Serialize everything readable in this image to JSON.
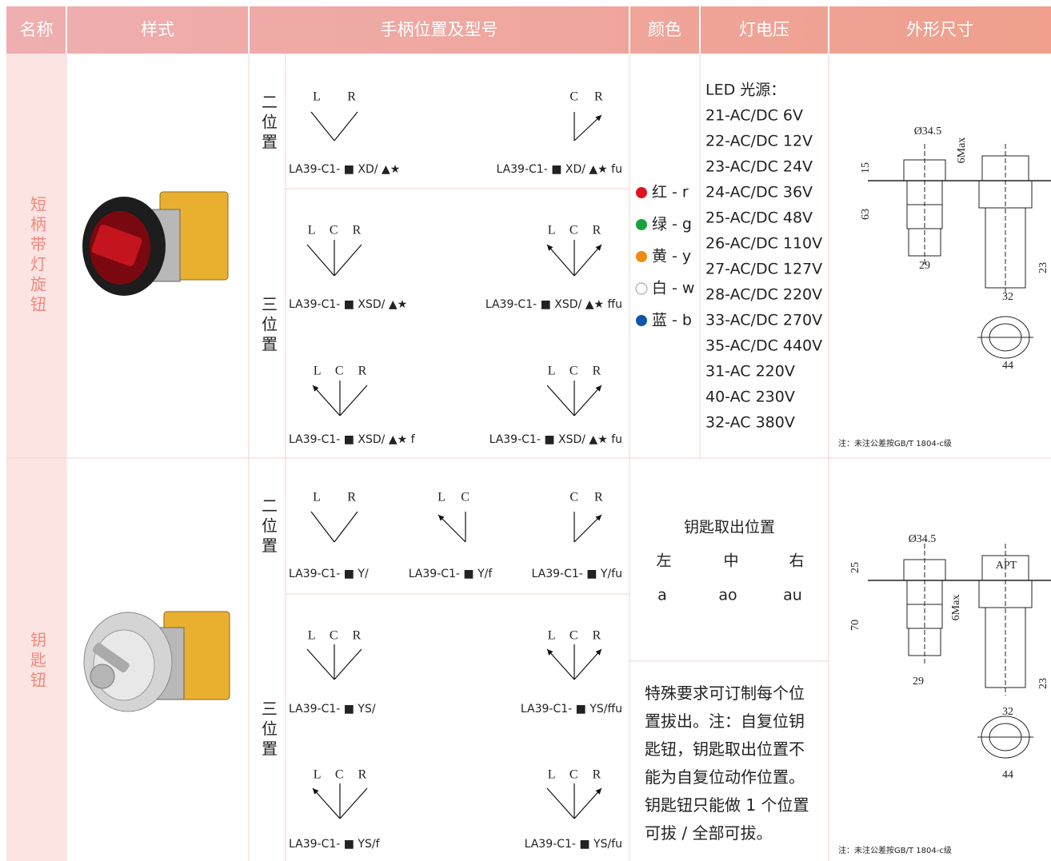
{
  "table": {
    "headers": [
      "名称",
      "样式",
      "手柄位置及型号",
      "颜色",
      "灯电压",
      "外形尺寸"
    ],
    "rows": [
      {
        "name": "短柄带灯旋钮",
        "positions": [
          {
            "label": "二位置",
            "diagrams": [
              {
                "letters": "L R",
                "model": "LA39-C1- ■ XD/ ▲★"
              },
              {
                "letters": "C R",
                "model": "LA39-C1- ■ XD/ ▲★ fu"
              }
            ]
          },
          {
            "label": "三位置",
            "diagrams": [
              {
                "letters": "L C R",
                "model": "LA39-C1- ■ XSD/ ▲★"
              },
              {
                "letters": "L C R",
                "model": "LA39-C1- ■ XSD/ ▲★ ffu"
              },
              {
                "letters": "L C R",
                "model": "LA39-C1- ■ XSD/ ▲★ f"
              },
              {
                "letters": "L C R",
                "model": "LA39-C1- ■ XSD/ ▲★ fu"
              }
            ]
          }
        ],
        "colors": [
          "红 - r",
          "绿 - g",
          "黄 - y",
          "白 - w",
          "蓝 - b"
        ],
        "voltage": {
          "title": "LED 光源：",
          "items": [
            "21-AC/DC 6V",
            "22-AC/DC 12V",
            "23-AC/DC 24V",
            "24-AC/DC 36V",
            "25-AC/DC 48V",
            "26-AC/DC 110V",
            "27-AC/DC 127V",
            "28-AC/DC 220V",
            "33-AC/DC 270V",
            "35-AC/DC 440V",
            "31-AC 220V",
            "40-AC 230V",
            "32-AC 380V"
          ]
        },
        "dimensions": {
          "labels": [
            "Ø34.5",
            "6Max",
            "15",
            "63",
            "29",
            "32",
            "23",
            "44"
          ],
          "note": "注：未注公差按GB/T 1804-c级"
        }
      },
      {
        "name": "钥匙钮",
        "positions": [
          {
            "label": "二位置",
            "diagrams": [
              {
                "letters": "L R",
                "model": "LA39-C1- ■ Y/"
              },
              {
                "letters": "L C",
                "model": "LA39-C1- ■ Y/f"
              },
              {
                "letters": "C R",
                "model": "LA39-C1- ■ Y/fu"
              }
            ]
          },
          {
            "label": "三位置",
            "diagrams": [
              {
                "letters": "L C R",
                "model": "LA39-C1- ■ YS/"
              },
              {
                "letters": "L C R",
                "model": "LA39-C1- ■ YS/ffu"
              },
              {
                "letters": "L C R",
                "model": "LA39-C1- ■ YS/f"
              },
              {
                "letters": "L C R",
                "model": "LA39-C1- ■ YS/fu"
              }
            ]
          }
        ],
        "key_positions": {
          "title": "钥匙取出位置",
          "columns": [
            "左",
            "中",
            "右"
          ],
          "codes": [
            "a",
            "ao",
            "au"
          ]
        },
        "special_note": "特殊要求可订制每个位置拔出。注：自复位钥匙钮，钥匙取出位置不能为自复位动作位置。钥匙钮只能做 1 个位置可拔 / 全部可拔。",
        "dimensions": {
          "labels": [
            "Ø34.5",
            "25",
            "APT",
            "6Max",
            "70",
            "29",
            "23",
            "32",
            "44"
          ],
          "note": "注：未注公差按GB/T 1804-c级"
        }
      }
    ]
  }
}
